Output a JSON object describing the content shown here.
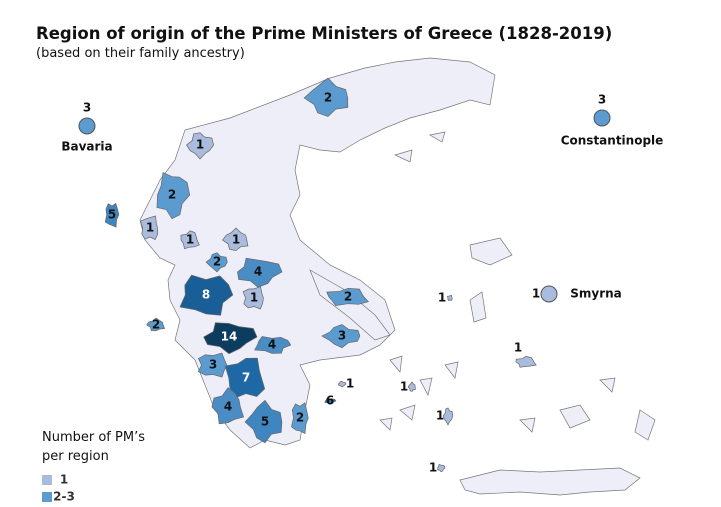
{
  "title": "Region of origin of the Prime Ministers of Greece (1828-2019)",
  "subtitle": "(based on their family ancestry)",
  "legend": {
    "title": "Number of PM’s per region",
    "items": [
      {
        "label": "1",
        "color": "#a9bcdd"
      },
      {
        "label": "2-3",
        "color": "#5b9bcf"
      }
    ]
  },
  "region_colors": {
    "1": "#a9bcdd",
    "2": "#5b9bcf",
    "3": "#5b9bcf",
    "4": "#4a8cc4",
    "5": "#3f86c0",
    "6": "#2d78b6",
    "7": "#1f68a6",
    "8": "#1a5e98",
    "14": "#0c3d5f"
  },
  "regions": [
    {
      "value": 2
    },
    {
      "value": 1
    },
    {
      "value": 2
    },
    {
      "value": 5
    },
    {
      "value": 1
    },
    {
      "value": 1
    },
    {
      "value": 1
    },
    {
      "value": 2
    },
    {
      "value": 4
    },
    {
      "value": 8
    },
    {
      "value": 1
    },
    {
      "value": 2
    },
    {
      "value": 2
    },
    {
      "value": 3
    },
    {
      "value": 14
    },
    {
      "value": 4
    },
    {
      "value": 3
    },
    {
      "value": 7
    },
    {
      "value": 4
    },
    {
      "value": 5
    },
    {
      "value": 1
    },
    {
      "value": 6
    },
    {
      "value": 2
    },
    {
      "value": 1
    },
    {
      "value": 1
    },
    {
      "value": 1
    },
    {
      "value": 1
    },
    {
      "value": 1
    }
  ],
  "external": [
    {
      "name": "Bavaria",
      "value": 3
    },
    {
      "name": "Constantinople",
      "value": 3
    },
    {
      "name": "Smyrna",
      "value": 1
    }
  ]
}
